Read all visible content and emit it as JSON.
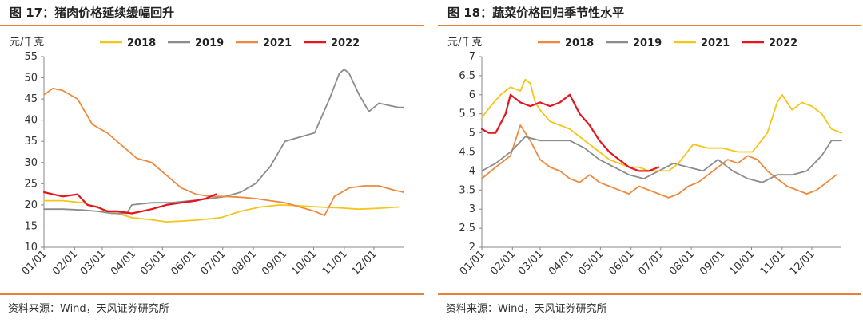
{
  "source_text": "资料来源：Wind，天风证券研究所",
  "colors": {
    "rule": "#e8803a",
    "s2018": "#f5c518",
    "s2019": "#8c8c8c",
    "s2021": "#ef8a3c",
    "s2022": "#e8141d"
  },
  "chart_data": [
    {
      "type": "line",
      "title": "图 17：猪肉价格延续缓幅回升",
      "ylabel": "元/千克",
      "ylim": [
        10,
        55
      ],
      "yticks": [
        10,
        15,
        20,
        25,
        30,
        35,
        40,
        45,
        50,
        55
      ],
      "xlim": [
        1,
        365
      ],
      "xticks": [
        {
          "label": "01/01",
          "day": 1
        },
        {
          "label": "02/01",
          "day": 32
        },
        {
          "label": "03/01",
          "day": 60
        },
        {
          "label": "04/01",
          "day": 91
        },
        {
          "label": "05/01",
          "day": 121
        },
        {
          "label": "06/01",
          "day": 152
        },
        {
          "label": "07/01",
          "day": 182
        },
        {
          "label": "08/01",
          "day": 213
        },
        {
          "label": "09/01",
          "day": 244
        },
        {
          "label": "10/01",
          "day": 274
        },
        {
          "label": "11/01",
          "day": 305
        },
        {
          "label": "12/01",
          "day": 335
        }
      ],
      "legend_position": "top",
      "series": [
        {
          "name": "2018",
          "color": "#f5c518",
          "x": [
            1,
            20,
            40,
            60,
            75,
            90,
            110,
            125,
            140,
            160,
            180,
            200,
            220,
            240,
            260,
            280,
            300,
            320,
            340,
            360
          ],
          "y": [
            21,
            21,
            20.5,
            19,
            18,
            17,
            16.5,
            16,
            16.2,
            16.5,
            17,
            18.5,
            19.5,
            20,
            19.8,
            19.5,
            19.3,
            19,
            19.2,
            19.5
          ]
        },
        {
          "name": "2019",
          "color": "#8c8c8c",
          "x": [
            1,
            20,
            40,
            55,
            70,
            85,
            90,
            110,
            130,
            150,
            170,
            185,
            200,
            215,
            230,
            245,
            260,
            275,
            290,
            300,
            305,
            310,
            320,
            330,
            340,
            350,
            360,
            365
          ],
          "y": [
            19,
            19,
            18.8,
            18.5,
            18,
            18,
            20,
            20.5,
            20.5,
            21,
            21.5,
            22,
            23,
            25,
            29,
            35,
            36,
            37,
            45,
            51,
            52,
            51,
            46,
            42,
            44,
            43.5,
            43,
            43
          ]
        },
        {
          "name": "2021",
          "color": "#ef8a3c",
          "x": [
            1,
            10,
            20,
            35,
            50,
            65,
            80,
            95,
            110,
            125,
            140,
            155,
            170,
            185,
            200,
            215,
            230,
            245,
            260,
            275,
            285,
            295,
            310,
            325,
            340,
            355,
            365
          ],
          "y": [
            46,
            47.5,
            47,
            45,
            39,
            37,
            34,
            31,
            30,
            27,
            24,
            22.5,
            22,
            22,
            21.8,
            21.5,
            21,
            20.5,
            19.5,
            18.5,
            17.5,
            22,
            24,
            24.5,
            24.5,
            23.5,
            23
          ]
        },
        {
          "name": "2022",
          "color": "#e8141d",
          "x": [
            1,
            10,
            20,
            35,
            45,
            55,
            65,
            75,
            90,
            100,
            110,
            125,
            140,
            155,
            165,
            175
          ],
          "y": [
            23,
            22.5,
            22,
            22.5,
            20,
            19.5,
            18.5,
            18.5,
            18,
            18.5,
            19,
            20,
            20.5,
            21,
            21.5,
            22.5
          ]
        }
      ]
    },
    {
      "type": "line",
      "title": "图 18：蔬菜价格回归季节性水平",
      "ylabel": "元/千克",
      "ylim": [
        2,
        7
      ],
      "yticks": [
        2,
        2.5,
        3,
        3.5,
        4,
        4.5,
        5,
        5.5,
        6,
        6.5,
        7
      ],
      "xlim": [
        1,
        365
      ],
      "xticks": [
        {
          "label": "01/01",
          "day": 1
        },
        {
          "label": "02/01",
          "day": 32
        },
        {
          "label": "03/01",
          "day": 60
        },
        {
          "label": "04/01",
          "day": 91
        },
        {
          "label": "05/01",
          "day": 121
        },
        {
          "label": "06/01",
          "day": 152
        },
        {
          "label": "07/01",
          "day": 182
        },
        {
          "label": "08/01",
          "day": 213
        },
        {
          "label": "09/01",
          "day": 244
        },
        {
          "label": "10/01",
          "day": 274
        },
        {
          "label": "11/01",
          "day": 305
        },
        {
          "label": "12/01",
          "day": 335
        }
      ],
      "legend_position": "top",
      "series": [
        {
          "name": "2018",
          "color": "#ef8a3c",
          "x": [
            1,
            15,
            30,
            40,
            50,
            60,
            70,
            80,
            90,
            100,
            110,
            120,
            130,
            140,
            150,
            160,
            170,
            180,
            190,
            200,
            210,
            220,
            230,
            240,
            250,
            260,
            270,
            280,
            290,
            300,
            310,
            320,
            330,
            340,
            350,
            360
          ],
          "y": [
            3.8,
            4.1,
            4.4,
            5.2,
            4.8,
            4.3,
            4.1,
            4,
            3.8,
            3.7,
            3.9,
            3.7,
            3.6,
            3.5,
            3.4,
            3.6,
            3.5,
            3.4,
            3.3,
            3.4,
            3.6,
            3.7,
            3.9,
            4.1,
            4.3,
            4.2,
            4.4,
            4.3,
            4.0,
            3.8,
            3.6,
            3.5,
            3.4,
            3.5,
            3.7,
            3.9
          ]
        },
        {
          "name": "2019",
          "color": "#8c8c8c",
          "x": [
            1,
            15,
            30,
            45,
            60,
            75,
            90,
            105,
            120,
            135,
            150,
            165,
            180,
            195,
            210,
            225,
            240,
            255,
            270,
            285,
            300,
            315,
            330,
            345,
            355,
            365
          ],
          "y": [
            4,
            4.2,
            4.5,
            4.9,
            4.8,
            4.8,
            4.8,
            4.6,
            4.3,
            4.1,
            3.9,
            3.8,
            4.0,
            4.2,
            4.1,
            4.0,
            4.3,
            4.0,
            3.8,
            3.7,
            3.9,
            3.9,
            4.0,
            4.4,
            4.8,
            4.8
          ]
        },
        {
          "name": "2021",
          "color": "#f5c518",
          "x": [
            1,
            10,
            20,
            30,
            40,
            45,
            50,
            55,
            60,
            70,
            80,
            90,
            100,
            110,
            120,
            130,
            140,
            150,
            160,
            170,
            180,
            190,
            200,
            215,
            230,
            245,
            260,
            275,
            290,
            300,
            305,
            315,
            325,
            335,
            345,
            355,
            365
          ],
          "y": [
            5.4,
            5.7,
            6.0,
            6.2,
            6.1,
            6.4,
            6.3,
            5.8,
            5.6,
            5.3,
            5.2,
            5.1,
            4.9,
            4.7,
            4.5,
            4.3,
            4.2,
            4.1,
            4.1,
            4.0,
            4.0,
            4.0,
            4.2,
            4.7,
            4.6,
            4.6,
            4.5,
            4.5,
            5.0,
            5.8,
            6.0,
            5.6,
            5.8,
            5.7,
            5.5,
            5.1,
            5.0
          ]
        },
        {
          "name": "2022",
          "color": "#e8141d",
          "x": [
            1,
            8,
            15,
            25,
            30,
            40,
            50,
            60,
            70,
            80,
            90,
            100,
            110,
            120,
            130,
            140,
            150,
            160,
            170,
            180
          ],
          "y": [
            5.1,
            5.0,
            5.0,
            5.5,
            6.0,
            5.8,
            5.7,
            5.8,
            5.7,
            5.8,
            6.0,
            5.5,
            5.2,
            4.8,
            4.5,
            4.3,
            4.1,
            4.0,
            4.0,
            4.1
          ]
        }
      ]
    }
  ]
}
